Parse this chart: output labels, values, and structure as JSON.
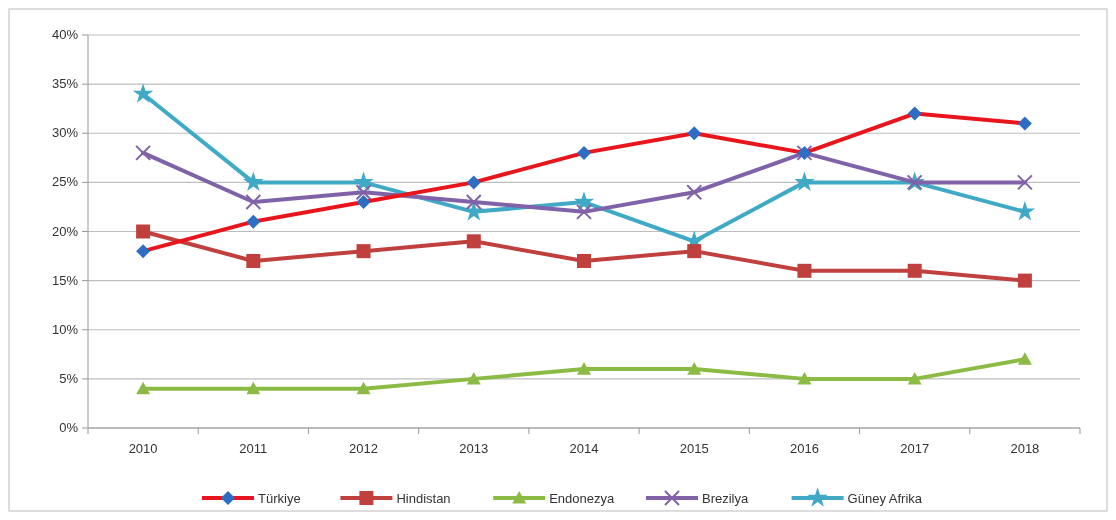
{
  "chart_data": {
    "type": "line",
    "categories": [
      "2010",
      "2011",
      "2012",
      "2013",
      "2014",
      "2015",
      "2016",
      "2017",
      "2018"
    ],
    "series": [
      {
        "name": "Türkiye",
        "color": "#e8161c",
        "colors": [
          "#2d6ec4",
          "#2d6ec4",
          "#2d6ec4",
          "#2d6ec4",
          "#2d6ec4",
          "#2d6ec4",
          "#2d6ec4",
          "#2d6ec4",
          "#2d6ec4"
        ],
        "marker": "diamond",
        "values": [
          18,
          21,
          23,
          25,
          28,
          30,
          28,
          32,
          31
        ]
      },
      {
        "name": "Hindistan",
        "color": "#c0403e",
        "marker": "square",
        "values": [
          20,
          17,
          18,
          19,
          17,
          18,
          16,
          16,
          15
        ]
      },
      {
        "name": "Endonezya",
        "color": "#8cbb45",
        "marker": "triangle",
        "values": [
          4,
          4,
          4,
          5,
          6,
          6,
          5,
          5,
          7
        ]
      },
      {
        "name": "Brezilya",
        "color": "#8062a8",
        "marker": "cross",
        "values": [
          28,
          23,
          24,
          23,
          22,
          24,
          28,
          25,
          25
        ]
      },
      {
        "name": "Güney Afrika",
        "color": "#3fa9c6",
        "marker": "star",
        "values": [
          34,
          25,
          25,
          22,
          23,
          19,
          25,
          25,
          22
        ]
      }
    ],
    "ylim": [
      0,
      40
    ],
    "yticks": [
      {
        "value": 0,
        "label": "0%"
      },
      {
        "value": 5,
        "label": "5%"
      },
      {
        "value": 10,
        "label": "10%"
      },
      {
        "value": 15,
        "label": "15%"
      },
      {
        "value": 20,
        "label": "20%"
      },
      {
        "value": 25,
        "label": "25%"
      },
      {
        "value": 30,
        "label": "30%"
      },
      {
        "value": 35,
        "label": "35%"
      },
      {
        "value": 40,
        "label": "40%"
      }
    ],
    "grid": "y",
    "legend": "bottom",
    "line_style": "solid"
  }
}
